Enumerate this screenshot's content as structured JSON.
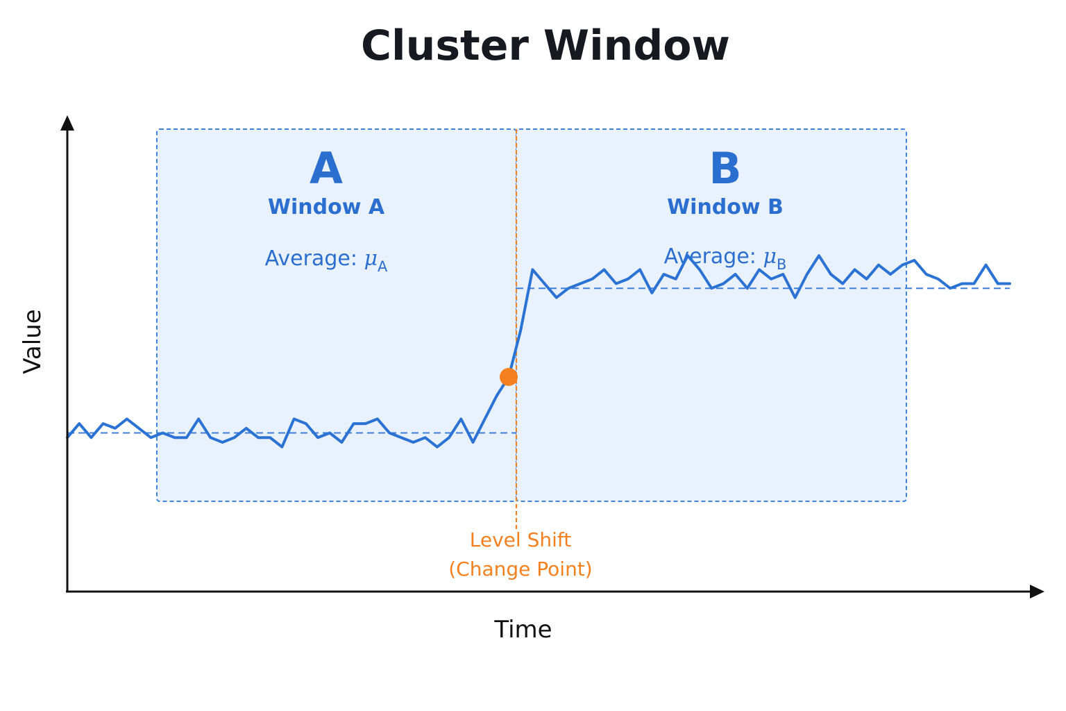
{
  "title": "Cluster Window",
  "axes": {
    "x_label": "Time",
    "y_label": "Value"
  },
  "colors": {
    "series": "#2a72d4",
    "window_fill": "#e9f1fc",
    "window_border": "#3d86e0",
    "window_text": "#2a6fd0",
    "change_point": "#f5801f",
    "axis": "#111111"
  },
  "windows": [
    {
      "letter": "A",
      "name": "Window A",
      "average_prefix": "Average: ",
      "mu": "μ",
      "sub": "A"
    },
    {
      "letter": "B",
      "name": "Window B",
      "average_prefix": "Average: ",
      "mu": "μ",
      "sub": "B"
    }
  ],
  "change_point": {
    "label_line1": "Level Shift",
    "label_line2": "(Change Point)",
    "index": 37
  },
  "chart_data": {
    "type": "line",
    "x_range": [
      0,
      80
    ],
    "y_range": [
      0,
      10
    ],
    "level_before": 3.4,
    "level_after": 6.5,
    "series": [
      {
        "values": [
          3.3,
          3.6,
          3.3,
          3.6,
          3.5,
          3.7,
          3.5,
          3.3,
          3.4,
          3.3,
          3.3,
          3.7,
          3.3,
          3.2,
          3.3,
          3.5,
          3.3,
          3.3,
          3.1,
          3.7,
          3.6,
          3.3,
          3.4,
          3.2,
          3.6,
          3.6,
          3.7,
          3.4,
          3.3,
          3.2,
          3.3,
          3.1,
          3.3,
          3.7,
          3.2,
          3.7,
          4.2,
          4.6,
          5.6,
          6.9,
          6.6,
          6.3,
          6.5,
          6.6,
          6.7,
          6.9,
          6.6,
          6.7,
          6.9,
          6.4,
          6.8,
          6.7,
          7.2,
          6.9,
          6.5,
          6.6,
          6.8,
          6.5,
          6.9,
          6.7,
          6.8,
          6.3,
          6.8,
          7.2,
          6.8,
          6.6,
          6.9,
          6.7,
          7.0,
          6.8,
          7.0,
          7.1,
          6.8,
          6.7,
          6.5,
          6.6,
          6.6,
          7.0,
          6.6,
          6.6
        ]
      }
    ]
  }
}
